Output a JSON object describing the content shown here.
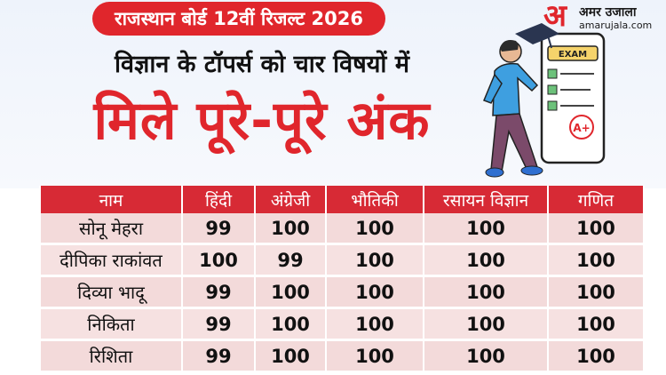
{
  "header": {
    "pill_text": "राजस्थान बोर्ड 12वीं रिजल्ट 2026",
    "subheadline": "विज्ञान के टॉपर्स को चार विषयों में",
    "headline": "मिले पूरे-पूरे अंक"
  },
  "brand": {
    "logo_letter": "अ",
    "name": "अमर उजाला",
    "url": "amarujala.com"
  },
  "illustration": {
    "board_label": "EXAM",
    "grade": "A+",
    "icon": "student-with-exam-board-icon"
  },
  "colors": {
    "accent_red": "#e0262c",
    "table_header": "#d72a35",
    "row_fill": "#f3dada",
    "text": "#111111"
  },
  "table": {
    "headers": [
      "नाम",
      "हिंदी",
      "अंग्रेजी",
      "भौतिकी",
      "रसायन विज्ञान",
      "गणित"
    ],
    "rows": [
      [
        "सोनू मेहरा",
        "99",
        "100",
        "100",
        "100",
        "100"
      ],
      [
        "दीपिका राकांवत",
        "100",
        "99",
        "100",
        "100",
        "100"
      ],
      [
        "दिव्या भादू",
        "99",
        "100",
        "100",
        "100",
        "100"
      ],
      [
        "निकिता",
        "99",
        "100",
        "100",
        "100",
        "100"
      ],
      [
        "रिशिता",
        "99",
        "100",
        "100",
        "100",
        "100"
      ]
    ]
  }
}
